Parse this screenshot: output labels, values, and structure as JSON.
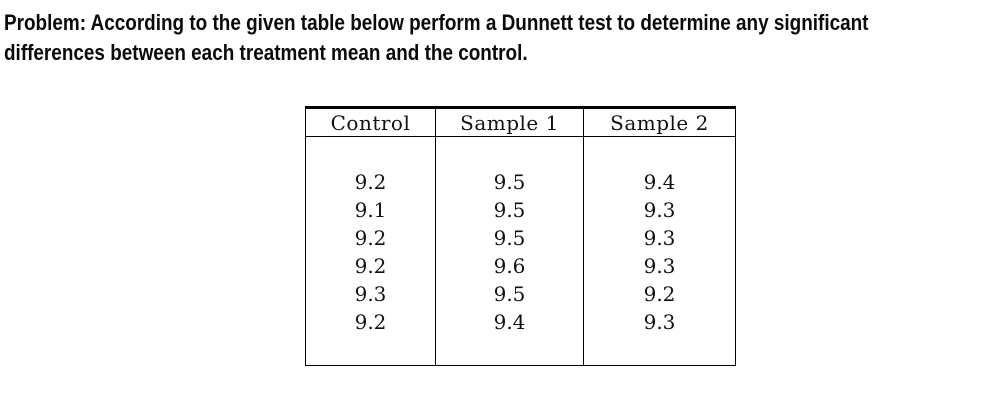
{
  "problem": {
    "line1": "Problem: According to the given table below perform a Dunnett test to determine any significant",
    "line2": "differences between each treatment mean and the control."
  },
  "table": {
    "columns": [
      "Control",
      "Sample 1",
      "Sample 2"
    ],
    "rows": [
      [
        "9.2",
        "9.5",
        "9.4"
      ],
      [
        "9.1",
        "9.5",
        "9.3"
      ],
      [
        "9.2",
        "9.5",
        "9.3"
      ],
      [
        "9.2",
        "9.6",
        "9.3"
      ],
      [
        "9.3",
        "9.5",
        "9.2"
      ],
      [
        "9.2",
        "9.4",
        "9.3"
      ]
    ]
  },
  "colors": {
    "text": "#0a0a0a",
    "table_border": "#000000",
    "background": "#ffffff"
  }
}
